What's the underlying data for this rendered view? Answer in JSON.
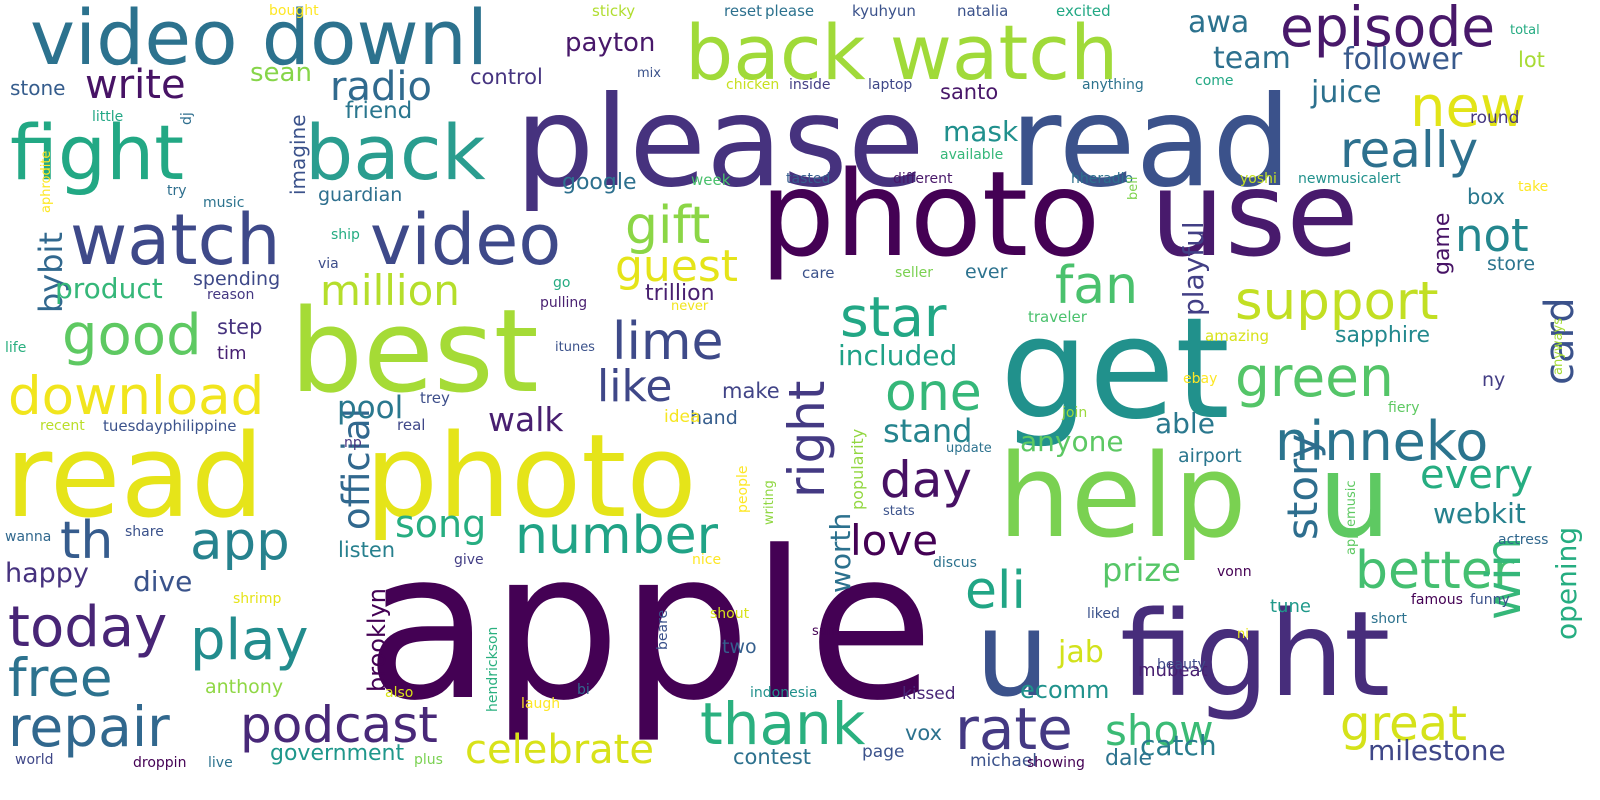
{
  "words": [
    {
      "t": "apple",
      "c": "#440154"
    },
    {
      "t": "please",
      "c": "#46327e"
    },
    {
      "t": "read",
      "c": "#3b528b"
    },
    {
      "t": "photo",
      "c": "#440154"
    },
    {
      "t": "use",
      "c": "#481a6c"
    },
    {
      "t": "read",
      "c": "#e6e419"
    },
    {
      "t": "photo",
      "c": "#e5e419"
    },
    {
      "t": "best",
      "c": "#a5db36"
    },
    {
      "t": "get",
      "c": "#21918c"
    },
    {
      "t": "help",
      "c": "#7ad151"
    },
    {
      "t": "u",
      "c": "#5ec962"
    },
    {
      "t": "u",
      "c": "#3b528b"
    },
    {
      "t": "fight",
      "c": "#472d7b"
    },
    {
      "t": "back watch",
      "c": "#a0da39"
    },
    {
      "t": "video downl",
      "c": "#2c728e"
    },
    {
      "t": "fight",
      "c": "#22a884"
    },
    {
      "t": "back",
      "c": "#2a9d8f"
    },
    {
      "t": "watch",
      "c": "#3e4989"
    },
    {
      "t": "video",
      "c": "#3e4989"
    },
    {
      "t": "episode",
      "c": "#48186a"
    },
    {
      "t": "repair",
      "c": "#31688e"
    },
    {
      "t": "podcast",
      "c": "#482878"
    },
    {
      "t": "thank",
      "c": "#2ab07f"
    },
    {
      "t": "rate",
      "c": "#443983"
    },
    {
      "t": "today",
      "c": "#482576"
    },
    {
      "t": "play",
      "c": "#228c8d"
    },
    {
      "t": "free",
      "c": "#2c728e"
    },
    {
      "t": "app",
      "c": "#26828e"
    },
    {
      "t": "th",
      "c": "#365c8d"
    },
    {
      "t": "good",
      "c": "#5ec962"
    },
    {
      "t": "download",
      "c": "#f1e51d"
    },
    {
      "t": "right",
      "c": "#443a83"
    },
    {
      "t": "star",
      "c": "#22a785"
    },
    {
      "t": "one",
      "c": "#35b779"
    },
    {
      "t": "day",
      "c": "#471164"
    },
    {
      "t": "love",
      "c": "#440154"
    },
    {
      "t": "eli",
      "c": "#21a585"
    },
    {
      "t": "green",
      "c": "#54c568"
    },
    {
      "t": "ninneko",
      "c": "#2b748e"
    },
    {
      "t": "support",
      "c": "#c2df23"
    },
    {
      "t": "really",
      "c": "#2d708e"
    },
    {
      "t": "new",
      "c": "#e2e418"
    },
    {
      "t": "number",
      "c": "#20a386"
    },
    {
      "t": "celebrate",
      "c": "#d8e219"
    },
    {
      "t": "show",
      "c": "#3bbb75"
    },
    {
      "t": "great",
      "c": "#d5e21a"
    },
    {
      "t": "better",
      "c": "#44bf70"
    },
    {
      "t": "every",
      "c": "#26ad81"
    },
    {
      "t": "win",
      "c": "#35b779"
    },
    {
      "t": "card",
      "c": "#3b528b"
    },
    {
      "t": "story",
      "c": "#2e6e8e"
    },
    {
      "t": "fan",
      "c": "#4ac16d"
    },
    {
      "t": "lime",
      "c": "#3e4a89"
    },
    {
      "t": "like",
      "c": "#3f4788"
    },
    {
      "t": "gift",
      "c": "#8bd646"
    },
    {
      "t": "guest",
      "c": "#e5e419"
    },
    {
      "t": "million",
      "c": "#b5de2b"
    },
    {
      "t": "song",
      "c": "#27ad81"
    },
    {
      "t": "official",
      "c": "#31688e"
    },
    {
      "t": "worth",
      "c": "#2c718e"
    },
    {
      "t": "included",
      "c": "#1fa187"
    },
    {
      "t": "stand",
      "c": "#25848e"
    },
    {
      "t": "anyone",
      "c": "#5cc863"
    },
    {
      "t": "pool",
      "c": "#2a788e"
    },
    {
      "t": "walk",
      "c": "#481f70"
    },
    {
      "t": "write",
      "c": "#471365"
    },
    {
      "t": "radio",
      "c": "#306a8e"
    },
    {
      "t": "bybit",
      "c": "#31688e"
    },
    {
      "t": "product",
      "c": "#35b779"
    },
    {
      "t": "happy",
      "c": "#46327e"
    },
    {
      "t": "dive",
      "c": "#3a538b"
    },
    {
      "t": "milestone",
      "c": "#3f4788"
    },
    {
      "t": "catch",
      "c": "#287c8e"
    },
    {
      "t": "prize",
      "c": "#56c667"
    },
    {
      "t": "jab",
      "c": "#d2e21b"
    },
    {
      "t": "ecomm",
      "c": "#20928c"
    },
    {
      "t": "awa",
      "c": "#2c728e"
    },
    {
      "t": "team",
      "c": "#2d708e"
    },
    {
      "t": "follower",
      "c": "#38598c"
    },
    {
      "t": "juice",
      "c": "#2d718e"
    },
    {
      "t": "payton",
      "c": "#48186a"
    },
    {
      "t": "sean",
      "c": "#86d549"
    },
    {
      "t": "friend",
      "c": "#2a768e"
    },
    {
      "t": "mask",
      "c": "#21908d"
    },
    {
      "t": "not",
      "c": "#24878e"
    },
    {
      "t": "playful",
      "c": "#423f85"
    },
    {
      "t": "webkit",
      "c": "#26828e"
    },
    {
      "t": "opening",
      "c": "#26ad81"
    },
    {
      "t": "able",
      "c": "#2a788e"
    },
    {
      "t": "listen",
      "c": "#27808e"
    },
    {
      "t": "brooklyn",
      "c": "#440154"
    },
    {
      "t": "anthony",
      "c": "#8fd744"
    },
    {
      "t": "government",
      "c": "#1f978b"
    },
    {
      "t": "contest",
      "c": "#2d718e"
    },
    {
      "t": "vox",
      "c": "#2c728e"
    },
    {
      "t": "dale",
      "c": "#2c728e"
    },
    {
      "t": "google",
      "c": "#2d708e"
    },
    {
      "t": "guardian",
      "c": "#2e6f8e"
    },
    {
      "t": "control",
      "c": "#463480"
    },
    {
      "t": "santo",
      "c": "#481769"
    },
    {
      "t": "box",
      "c": "#2a788e"
    },
    {
      "t": "store",
      "c": "#2b748e"
    },
    {
      "t": "game",
      "c": "#471365"
    },
    {
      "t": "sapphire",
      "c": "#23898e"
    },
    {
      "t": "trillion",
      "c": "#481f70"
    },
    {
      "t": "spending",
      "c": "#3e4989"
    },
    {
      "t": "step",
      "c": "#46327e"
    },
    {
      "t": "tim",
      "c": "#482173"
    },
    {
      "t": "imagine",
      "c": "#3b528b"
    },
    {
      "t": "make",
      "c": "#414487"
    },
    {
      "t": "hand",
      "c": "#365d8d"
    },
    {
      "t": "two",
      "c": "#355f8d"
    },
    {
      "t": "ever",
      "c": "#2c728e"
    },
    {
      "t": "airport",
      "c": "#2a768e"
    },
    {
      "t": "mubeat",
      "c": "#481f70"
    },
    {
      "t": "tune",
      "c": "#1f998a"
    },
    {
      "t": "kissed",
      "c": "#482576"
    },
    {
      "t": "michael",
      "c": "#3b528b"
    },
    {
      "t": "page",
      "c": "#3b528b"
    },
    {
      "t": "stone",
      "c": "#365d8d"
    },
    {
      "t": "lot",
      "c": "#a8db34"
    },
    {
      "t": "round",
      "c": "#453781"
    },
    {
      "t": "ny",
      "c": "#433d84"
    },
    {
      "t": "people",
      "c": "#fde725"
    },
    {
      "t": "writing",
      "c": "#90d743"
    },
    {
      "t": "popularity",
      "c": "#93d741"
    },
    {
      "t": "idea",
      "c": "#f6e620"
    },
    {
      "t": "trey",
      "c": "#3d4e8a"
    },
    {
      "t": "real",
      "c": "#3f4788"
    },
    {
      "t": "np",
      "c": "#46337f"
    },
    {
      "t": "tuesdayphilippine",
      "c": "#3b528b"
    },
    {
      "t": "recent",
      "c": "#bade28"
    },
    {
      "t": "life",
      "c": "#29af7f"
    },
    {
      "t": "reason",
      "c": "#453882"
    },
    {
      "t": "via",
      "c": "#3d4d8a"
    },
    {
      "t": "ship",
      "c": "#25ac82"
    },
    {
      "t": "music",
      "c": "#2c738e"
    },
    {
      "t": "try",
      "c": "#2e6f8e"
    },
    {
      "t": "little",
      "c": "#22a785"
    },
    {
      "t": "dj",
      "c": "#2e6e8e"
    },
    {
      "t": "aphrodite",
      "c": "#fde725"
    },
    {
      "t": "bought",
      "c": "#fde725"
    },
    {
      "t": "sticky",
      "c": "#b0dd2f"
    },
    {
      "t": "reset",
      "c": "#2d708e"
    },
    {
      "t": "please",
      "c": "#2c728e"
    },
    {
      "t": "kyuhyun",
      "c": "#3b528b"
    },
    {
      "t": "natalia",
      "c": "#3b528b"
    },
    {
      "t": "excited",
      "c": "#22a884"
    },
    {
      "t": "total",
      "c": "#25ab82"
    },
    {
      "t": "mix",
      "c": "#3b528b"
    },
    {
      "t": "chicken",
      "c": "#c8e020"
    },
    {
      "t": "inside",
      "c": "#433e85"
    },
    {
      "t": "laptop",
      "c": "#3f4889"
    },
    {
      "t": "anything",
      "c": "#2c728e"
    },
    {
      "t": "come",
      "c": "#22a884"
    },
    {
      "t": "available",
      "c": "#35b779"
    },
    {
      "t": "week",
      "c": "#4ac16d"
    },
    {
      "t": "tasted",
      "c": "#365d8d"
    },
    {
      "t": "different",
      "c": "#481769"
    },
    {
      "t": "hheradio",
      "c": "#2d708e"
    },
    {
      "t": "yoshi",
      "c": "#c5e021"
    },
    {
      "t": "newmusicalert",
      "c": "#21918c"
    },
    {
      "t": "take",
      "c": "#fde725"
    },
    {
      "t": "bell",
      "c": "#7fd34e"
    },
    {
      "t": "care",
      "c": "#3b528b"
    },
    {
      "t": "seller",
      "c": "#7ad151"
    },
    {
      "t": "go",
      "c": "#25ab82"
    },
    {
      "t": "pulling",
      "c": "#481f70"
    },
    {
      "t": "never",
      "c": "#f1e51d"
    },
    {
      "t": "traveler",
      "c": "#4ac16d"
    },
    {
      "t": "amazing",
      "c": "#d8e219"
    },
    {
      "t": "ebay",
      "c": "#fde725"
    },
    {
      "t": "join",
      "c": "#9bd93c"
    },
    {
      "t": "itunes",
      "c": "#3b528b"
    },
    {
      "t": "update",
      "c": "#2c728e"
    },
    {
      "t": "stats",
      "c": "#3b528b"
    },
    {
      "t": "discus",
      "c": "#2c728e"
    },
    {
      "t": "fiery",
      "c": "#5ec962"
    },
    {
      "t": "anyways",
      "c": "#a5db36"
    },
    {
      "t": "applemusic",
      "c": "#5ec962"
    },
    {
      "t": "actress",
      "c": "#31688e"
    },
    {
      "t": "wanna",
      "c": "#31688e"
    },
    {
      "t": "share",
      "c": "#3b528b"
    },
    {
      "t": "give",
      "c": "#433e85"
    },
    {
      "t": "nice",
      "c": "#fde725"
    },
    {
      "t": "shrimp",
      "c": "#e5e419"
    },
    {
      "t": "shout",
      "c": "#d8e219"
    },
    {
      "t": "beare",
      "c": "#3b528b"
    },
    {
      "t": "sam",
      "c": "#440154"
    },
    {
      "t": "vonn",
      "c": "#440154"
    },
    {
      "t": "famous",
      "c": "#440154"
    },
    {
      "t": "funny",
      "c": "#3b528b"
    },
    {
      "t": "short",
      "c": "#2c728e"
    },
    {
      "t": "liked",
      "c": "#3b528b"
    },
    {
      "t": "ni",
      "c": "#e5e419"
    },
    {
      "t": "beauty",
      "c": "#3e4a89"
    },
    {
      "t": "hendrickson",
      "c": "#2ab07f"
    },
    {
      "t": "laugh",
      "c": "#fde725"
    },
    {
      "t": "bi",
      "c": "#31688e"
    },
    {
      "t": "also",
      "c": "#d8e219"
    },
    {
      "t": "indonesia",
      "c": "#21918c"
    },
    {
      "t": "world",
      "c": "#3f4788"
    },
    {
      "t": "droppin",
      "c": "#440154"
    },
    {
      "t": "live",
      "c": "#2c728e"
    },
    {
      "t": "plus",
      "c": "#7ad151"
    },
    {
      "t": "showing",
      "c": "#440154"
    }
  ]
}
